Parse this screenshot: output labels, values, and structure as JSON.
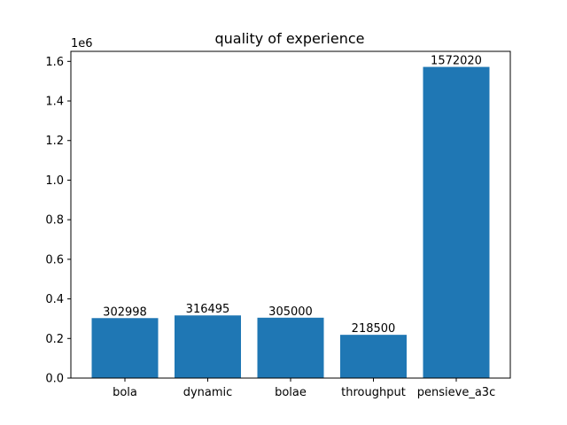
{
  "chart_data": {
    "type": "bar",
    "title": "quality of experience",
    "xlabel": "",
    "ylabel": "",
    "y_offset_text": "1e6",
    "categories": [
      "bola",
      "dynamic",
      "bolae",
      "throughput",
      "pensieve_a3c"
    ],
    "values": [
      302998,
      316495,
      305000,
      218500,
      1572020
    ],
    "data_labels": [
      "302998",
      "316495",
      "305000",
      "218500",
      "1572020"
    ],
    "yticks": [
      0.0,
      0.2,
      0.4,
      0.6,
      0.8,
      1.0,
      1.2,
      1.4,
      1.6
    ],
    "ytick_labels": [
      "0.0",
      "0.2",
      "0.4",
      "0.6",
      "0.8",
      "1.0",
      "1.2",
      "1.4",
      "1.6"
    ],
    "ylim": [
      0,
      1650621
    ],
    "bar_color": "#1f77b4",
    "grid": false,
    "legend": "none"
  }
}
